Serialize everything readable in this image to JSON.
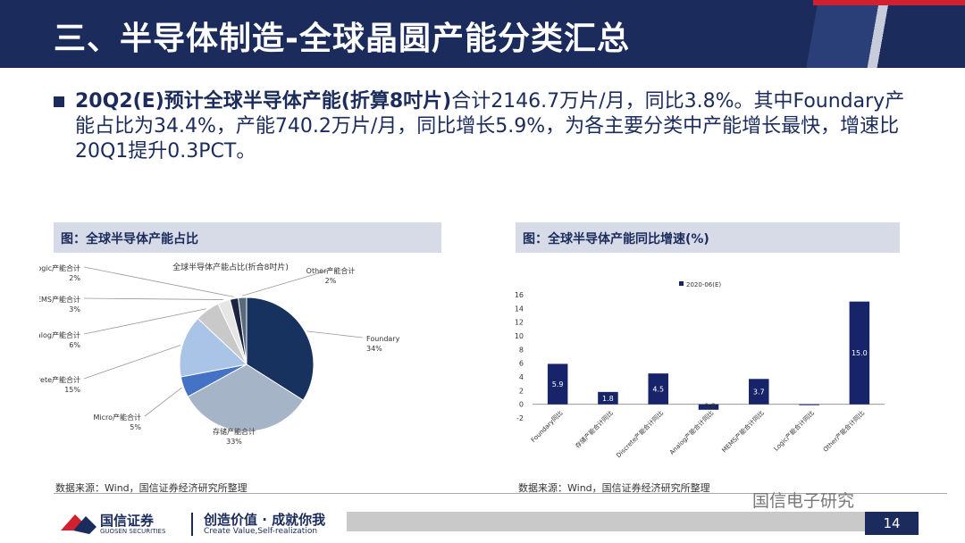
{
  "header": {
    "title": "三、半导体制造-全球晶圆产能分类汇总"
  },
  "summary": {
    "bold": "20Q2(E)预计全球半导体产能(折算8吋片)",
    "rest": "合计2146.7万片/月，同比3.8%。其中Foundary产能占比为34.4%，产能740.2万片/月，同比增长5.9%，为各主要分类中产能增长最快，增速比20Q1提升0.3PCT。"
  },
  "left_panel": {
    "heading": "图：全球半导体产能占比",
    "source": "数据来源：Wind，国信证券经济研究所整理"
  },
  "right_panel": {
    "heading": "图：全球半导体产能同比增速(%)",
    "source": "数据来源：Wind，国信证券经济研究所整理"
  },
  "footer": {
    "logo_name": "国信证券",
    "logo_en": "GUOSEN SECURITIES",
    "slogan": "创造价值 · 成就你我",
    "slogan_en": "Create Value,Self-realization",
    "wechat": "国信电子研究",
    "page": "14"
  },
  "colors": {
    "navy": "#1b2c5c",
    "red": "#d1202f",
    "panel": "#d7dbe8"
  },
  "chart_data": [
    {
      "type": "pie",
      "title": "全球半导体产能占比(折合8吋片)",
      "slices": [
        {
          "name": "Foundary",
          "label": "34%",
          "value": 34,
          "color": "#17325e"
        },
        {
          "name": "存储产能合计",
          "label": "33%",
          "value": 33,
          "color": "#a6b4c8"
        },
        {
          "name": "Micro产能合计",
          "label": "5%",
          "value": 5,
          "color": "#4472c4"
        },
        {
          "name": "Discrete产能合计",
          "label": "15%",
          "value": 15,
          "color": "#a9c4e6"
        },
        {
          "name": "Analog产能合计",
          "label": "6%",
          "value": 6,
          "color": "#c9c9c9"
        },
        {
          "name": "MEMS产能合计",
          "label": "3%",
          "value": 3,
          "color": "#e6e6e6"
        },
        {
          "name": "Logic产能合计",
          "label": "2%",
          "value": 2,
          "color": "#1b2440"
        },
        {
          "name": "Other产能合计",
          "label": "2%",
          "value": 2,
          "color": "#5a6a7e"
        }
      ]
    },
    {
      "type": "bar",
      "legend": "2020-06(E)",
      "categories": [
        "Foundary同比",
        "存储产能合计同比",
        "Discrete产能合计同比",
        "Analog产能合计同比",
        "MEMS产能合计同比",
        "Logic产能合计同比",
        "Other产能合计同比"
      ],
      "values": [
        5.9,
        1.8,
        4.5,
        -0.8,
        3.7,
        0.0,
        15.0
      ],
      "labels": [
        "5.9",
        "1.8",
        "4.5",
        "-0.8",
        "3.7",
        "",
        "15.0"
      ],
      "ylim": [
        -2,
        16
      ],
      "yticks": [
        -2,
        0,
        2,
        4,
        6,
        8,
        10,
        12,
        14,
        16
      ],
      "color": "#17246a"
    }
  ]
}
